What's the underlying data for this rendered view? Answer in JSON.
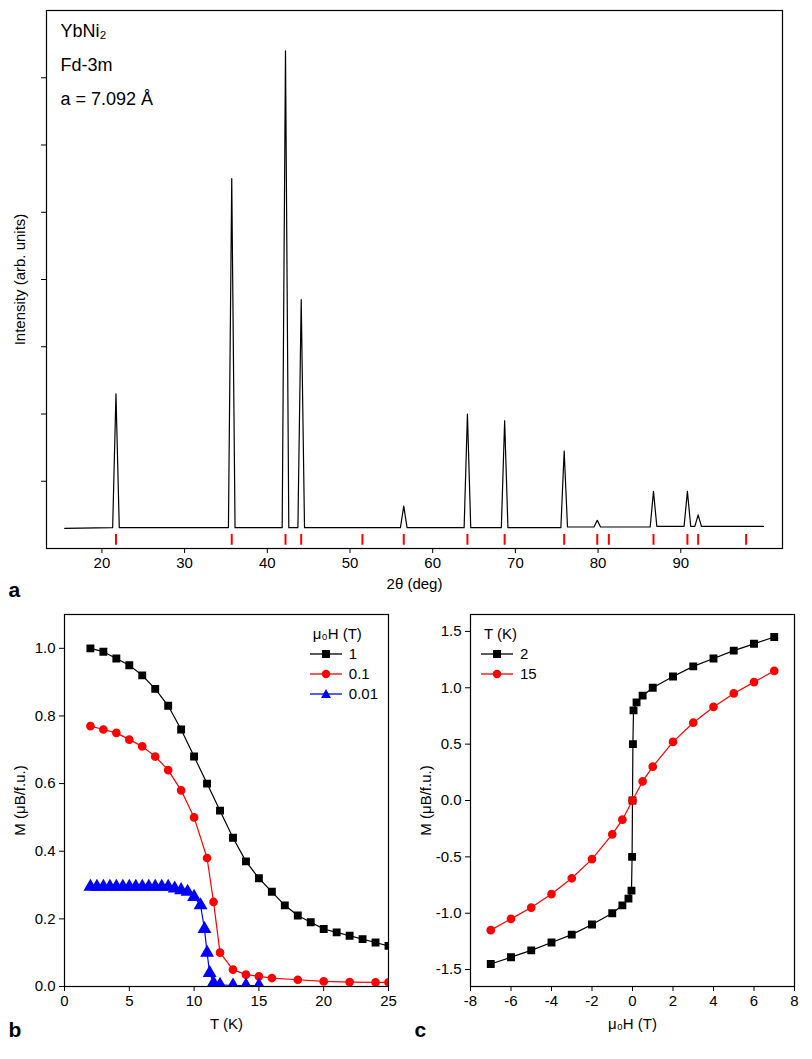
{
  "chart_data": [
    {
      "type": "line",
      "panel_label": "a",
      "annotations": [
        "YbNi₂",
        "Fd-3m",
        "a = 7.092 Å"
      ],
      "x_label": "2θ (deg)",
      "y_label": "Intensity (arb. units)",
      "xlim": [
        13.3,
        102.3
      ],
      "xticks": [
        20,
        30,
        40,
        50,
        60,
        70,
        80,
        90
      ],
      "ylim": [
        0,
        8
      ],
      "yticks": [
        1,
        2,
        3,
        4,
        5,
        6,
        7
      ],
      "tick_labels": "x",
      "series": [
        {
          "type": "line",
          "color": "#000000",
          "line_style": "solid",
          "x": [
            15.5,
            21.3,
            21.7,
            22.1,
            35.3,
            35.7,
            36.1,
            41.8,
            42.2,
            42.6,
            43.7,
            44.1,
            44.5,
            56.1,
            56.5,
            56.9,
            63.8,
            64.2,
            64.6,
            68.3,
            68.7,
            69.1,
            75.5,
            75.9,
            76.3,
            79.5,
            79.9,
            80.3,
            86.3,
            86.7,
            87.1,
            90.4,
            90.8,
            91.2,
            91.7,
            92.1,
            92.5,
            100
          ],
          "values": [
            0.3,
            0.31,
            2.3,
            0.31,
            0.31,
            5.5,
            0.31,
            0.31,
            7.4,
            0.31,
            0.31,
            3.7,
            0.31,
            0.31,
            0.63,
            0.31,
            0.31,
            2.0,
            0.31,
            0.31,
            1.9,
            0.31,
            0.31,
            1.45,
            0.32,
            0.32,
            0.42,
            0.32,
            0.32,
            0.85,
            0.33,
            0.33,
            0.85,
            0.33,
            0.33,
            0.5,
            0.33,
            0.33
          ]
        },
        {
          "type": "tick",
          "color": "#ff0000",
          "x": [
            21.7,
            35.7,
            42.2,
            44.1,
            51.5,
            56.5,
            64.2,
            68.7,
            75.9,
            79.9,
            81.3,
            86.7,
            90.8,
            92.1,
            97.9
          ]
        }
      ]
    },
    {
      "type": "line",
      "panel_label": "b",
      "x_label": "T (K)",
      "y_label": "M (μB/f.u.)",
      "xlim": [
        0,
        25
      ],
      "xticks": [
        0,
        5,
        10,
        15,
        20,
        25
      ],
      "ylim": [
        0,
        1.1
      ],
      "yticks": [
        {
          "value": 0,
          "label": "0.0"
        },
        0.2,
        0.4,
        0.6,
        0.8,
        {
          "value": 1,
          "label": "1.0"
        }
      ],
      "legend": "top-right",
      "legend_title": "μ₀H (T)",
      "series": [
        {
          "name": "1",
          "color": "#000000",
          "marker": "square",
          "line_style": "solid",
          "x": [
            2,
            3,
            4,
            5,
            6,
            7,
            8,
            9,
            10,
            11,
            12,
            13,
            14,
            15,
            16,
            17,
            18,
            19,
            20,
            21,
            22,
            23,
            24,
            25
          ],
          "values": [
            1.0,
            0.99,
            0.97,
            0.95,
            0.92,
            0.88,
            0.83,
            0.76,
            0.68,
            0.6,
            0.52,
            0.44,
            0.37,
            0.32,
            0.28,
            0.24,
            0.21,
            0.19,
            0.17,
            0.16,
            0.15,
            0.14,
            0.13,
            0.12
          ]
        },
        {
          "name": "0.1",
          "color": "#ff0000",
          "marker": "circle",
          "line_style": "solid",
          "x": [
            2,
            3,
            4,
            5,
            6,
            7,
            8,
            9,
            10,
            11,
            11.5,
            12,
            13,
            14,
            15,
            16,
            18,
            20,
            22,
            24,
            25
          ],
          "values": [
            0.77,
            0.76,
            0.75,
            0.73,
            0.71,
            0.68,
            0.64,
            0.58,
            0.5,
            0.38,
            0.25,
            0.1,
            0.05,
            0.035,
            0.03,
            0.025,
            0.02,
            0.015,
            0.013,
            0.012,
            0.012
          ]
        },
        {
          "name": "0.01",
          "color": "#0000ff",
          "marker": "triangle",
          "line_style": "solid",
          "x": [
            2,
            2.5,
            3,
            3.5,
            4,
            4.5,
            5,
            5.5,
            6,
            6.5,
            7,
            7.5,
            8,
            8.5,
            9,
            9.5,
            10,
            10.5,
            10.8,
            11,
            11.2,
            11.5,
            12,
            13,
            14,
            15
          ],
          "values": [
            0.295,
            0.295,
            0.295,
            0.295,
            0.295,
            0.295,
            0.295,
            0.295,
            0.295,
            0.295,
            0.295,
            0.295,
            0.295,
            0.29,
            0.285,
            0.28,
            0.265,
            0.24,
            0.17,
            0.1,
            0.04,
            0.01,
            0.005,
            0.003,
            0.003,
            0.003
          ]
        }
      ]
    },
    {
      "type": "line",
      "panel_label": "c",
      "x_label": "μ₀H (T)",
      "y_label": "M (μB/f.u.)",
      "xlim": [
        -8,
        8
      ],
      "xticks": [
        -8,
        -6,
        -4,
        -2,
        0,
        2,
        4,
        6,
        8
      ],
      "ylim": [
        -1.65,
        1.65
      ],
      "yticks": [
        -1.5,
        {
          "value": -1,
          "label": "-1.0"
        },
        -0.5,
        {
          "value": 0,
          "label": "0.0"
        },
        0.5,
        {
          "value": 1,
          "label": "1.0"
        },
        1.5
      ],
      "legend": "top-left",
      "legend_title": "T (K)",
      "series": [
        {
          "name": "2",
          "color": "#000000",
          "marker": "square",
          "line_style": "solid",
          "x": [
            -7,
            -6,
            -5,
            -4,
            -3,
            -2,
            -1,
            -0.5,
            -0.2,
            -0.05,
            -0.02,
            0,
            0.02,
            0.05,
            0.2,
            0.5,
            1,
            2,
            3,
            4,
            5,
            6,
            7
          ],
          "values": [
            -1.45,
            -1.39,
            -1.33,
            -1.26,
            -1.19,
            -1.1,
            -1.0,
            -0.93,
            -0.87,
            -0.8,
            -0.5,
            0,
            0.5,
            0.8,
            0.87,
            0.93,
            1.0,
            1.1,
            1.19,
            1.26,
            1.33,
            1.39,
            1.45
          ]
        },
        {
          "name": "15",
          "color": "#ff0000",
          "marker": "circle",
          "line_style": "solid",
          "x": [
            -7,
            -6,
            -5,
            -4,
            -3,
            -2,
            -1,
            -0.5,
            0,
            0.5,
            1,
            2,
            3,
            4,
            5,
            6,
            7
          ],
          "values": [
            -1.15,
            -1.05,
            -0.95,
            -0.83,
            -0.69,
            -0.52,
            -0.3,
            -0.17,
            0,
            0.17,
            0.3,
            0.52,
            0.69,
            0.83,
            0.95,
            1.05,
            1.15
          ]
        }
      ]
    }
  ]
}
